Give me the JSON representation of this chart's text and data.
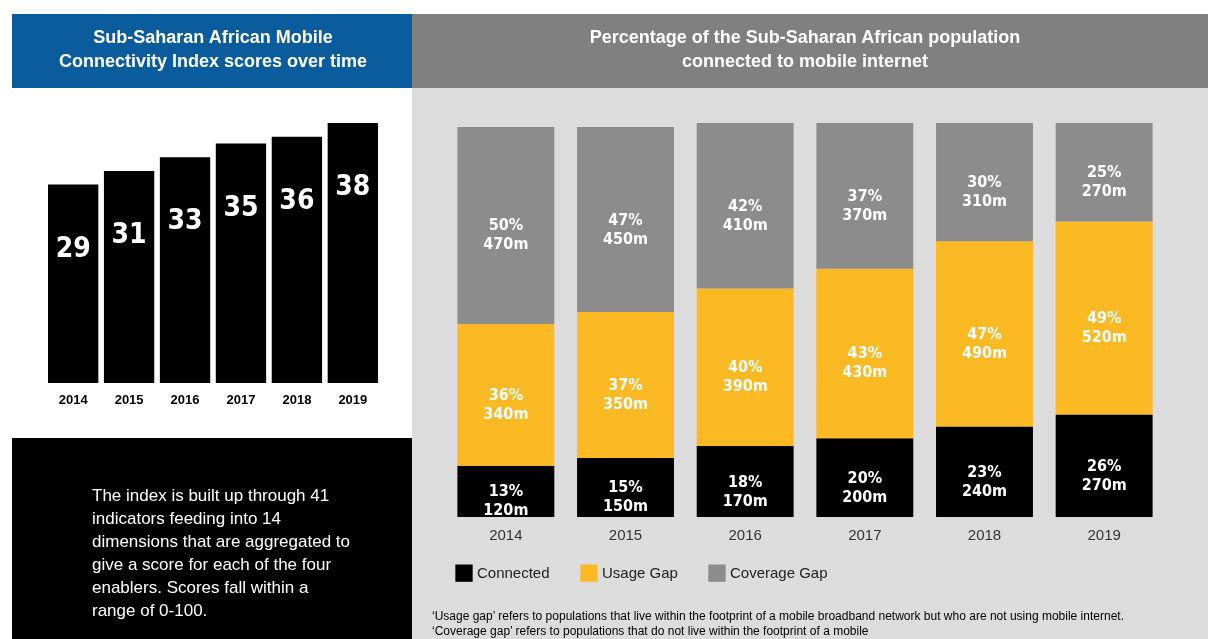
{
  "chart_data": [
    {
      "type": "bar",
      "title": "Sub-Saharan African Mobile Connectivity Index scores over time",
      "categories": [
        "2014",
        "2015",
        "2016",
        "2017",
        "2018",
        "2019"
      ],
      "values": [
        29,
        31,
        33,
        35,
        36,
        38
      ],
      "colors": [
        "#000000",
        "#000000",
        "#000000",
        "#000000",
        "#000000",
        "#000000"
      ],
      "data_labels": true,
      "annotations": [
        "The index is built up through 41 indicators feeding into 14 dimensions that are aggregated to give a score for each of the four enablers. Scores fall within a range of 0-100."
      ]
    },
    {
      "type": "bar",
      "stacked": true,
      "title": "Percentage of the Sub-Saharan African population connected to mobile internet",
      "categories": [
        "2014",
        "2015",
        "2016",
        "2017",
        "2018",
        "2019"
      ],
      "legend": "bottom",
      "series": [
        {
          "name": "Connected",
          "color": "#000000",
          "values": [
            13,
            15,
            18,
            20,
            23,
            26
          ],
          "value_labels": [
            "13%\n120m",
            "15%\n150m",
            "18%\n170m",
            "20%\n200m",
            "23%\n240m",
            "26%\n270m"
          ]
        },
        {
          "name": "Usage Gap",
          "color": "#fbb923",
          "values": [
            36,
            37,
            40,
            43,
            47,
            49
          ],
          "value_labels": [
            "36%\n340m",
            "37%\n350m",
            "40%\n390m",
            "43%\n430m",
            "47%\n490m",
            "49%\n520m"
          ]
        },
        {
          "name": "Coverage Gap",
          "color": "#8c8c8c",
          "values": [
            50,
            47,
            42,
            37,
            30,
            25
          ],
          "value_labels": [
            "50%\n470m",
            "47%\n450m",
            "42%\n410m",
            "37%\n370m",
            "30%\n310m",
            "25%\n270m"
          ]
        }
      ],
      "annotations": [
        "‘Usage gap’ refers to populations that live within the footprint of a mobile broadband network but who are not using mobile internet. ‘Coverage gap’ refers to populations that do not live within the footprint of a mobile"
      ]
    }
  ]
}
